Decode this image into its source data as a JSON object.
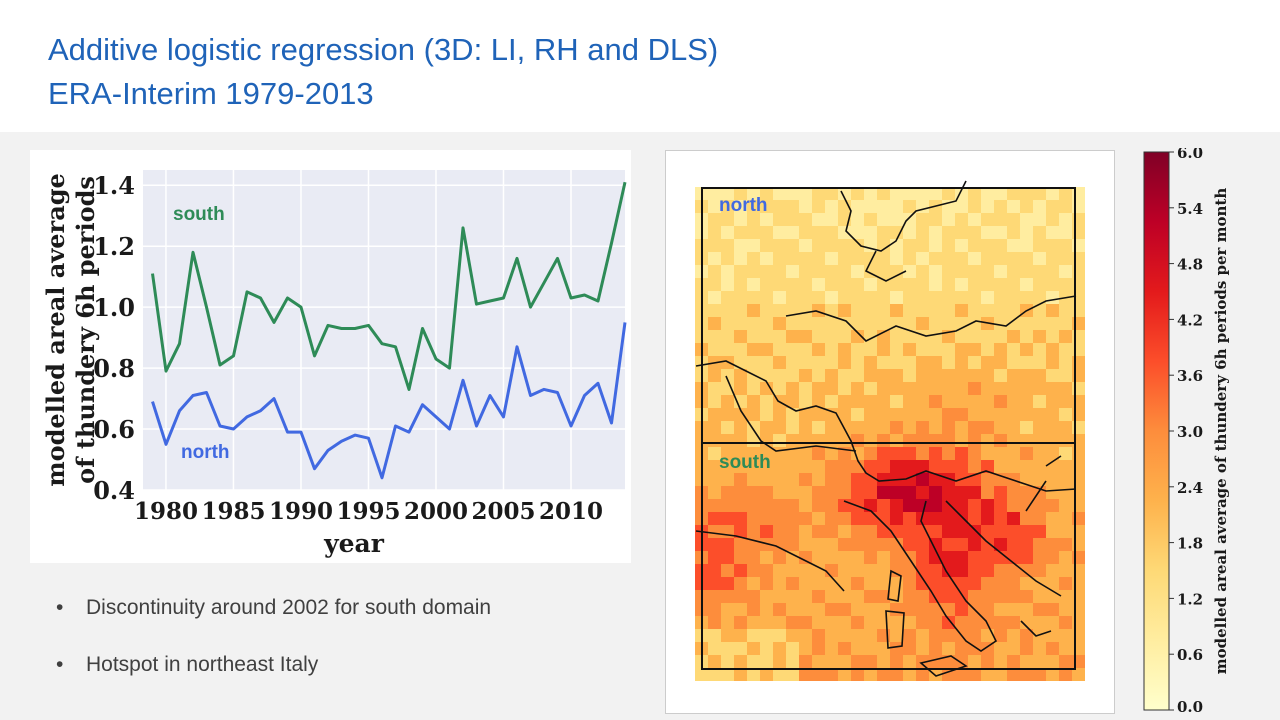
{
  "header": {
    "title_line1": "Additive logistic regression (3D: LI, RH and DLS)",
    "title_line2": "ERA-Interim 1979-2013"
  },
  "bullets": [
    "Discontinuity around 2002 for south domain",
    "Hotspot in northeast Italy"
  ],
  "chart_data": [
    {
      "type": "line",
      "xlabel": "year",
      "ylabel": "modelled areal average of thundery 6h periods",
      "x": [
        1979,
        1980,
        1981,
        1982,
        1983,
        1984,
        1985,
        1986,
        1987,
        1988,
        1989,
        1990,
        1991,
        1992,
        1993,
        1994,
        1995,
        1996,
        1997,
        1998,
        1999,
        2000,
        2001,
        2002,
        2003,
        2004,
        2005,
        2006,
        2007,
        2008,
        2009,
        2010,
        2011,
        2012,
        2013,
        2014
      ],
      "xlim": [
        1978.3,
        2014
      ],
      "ylim": [
        0.4,
        1.45
      ],
      "x_ticks": [
        1980,
        1985,
        1990,
        1995,
        2000,
        2005,
        2010
      ],
      "y_ticks": [
        0.4,
        0.6,
        0.8,
        1.0,
        1.2,
        1.4
      ],
      "y_tick_labels": [
        "0.4",
        "0.6",
        "0.8",
        "1.0",
        "1.2",
        "1.4"
      ],
      "grid": true,
      "series": [
        {
          "name": "south",
          "color": "#2e8b57",
          "values": [
            1.11,
            0.79,
            0.88,
            1.18,
            1.0,
            0.81,
            0.84,
            1.05,
            1.03,
            0.95,
            1.03,
            1.0,
            0.84,
            0.94,
            0.93,
            0.93,
            0.94,
            0.88,
            0.87,
            0.73,
            0.93,
            0.83,
            0.8,
            1.26,
            1.01,
            1.02,
            1.03,
            1.16,
            1.0,
            1.08,
            1.16,
            1.03,
            1.04,
            1.02,
            1.21,
            1.41
          ]
        },
        {
          "name": "north",
          "color": "#4169e1",
          "values": [
            0.69,
            0.55,
            0.66,
            0.71,
            0.72,
            0.61,
            0.6,
            0.64,
            0.66,
            0.7,
            0.59,
            0.59,
            0.47,
            0.53,
            0.56,
            0.58,
            0.57,
            0.44,
            0.61,
            0.59,
            0.68,
            0.64,
            0.6,
            0.76,
            0.61,
            0.71,
            0.64,
            0.87,
            0.71,
            0.73,
            0.72,
            0.61,
            0.71,
            0.75,
            0.62,
            0.95
          ]
        }
      ]
    },
    {
      "type": "heatmap",
      "domain_labels": [
        "north",
        "south"
      ],
      "colorbar": {
        "label": "modelled areal average of thundery 6h periods per month",
        "ticks": [
          0.0,
          0.6,
          1.2,
          1.8,
          2.4,
          3.0,
          3.6,
          4.2,
          4.8,
          5.4,
          6.0
        ],
        "tick_labels": [
          "0.0",
          "0.6",
          "1.2",
          "1.8",
          "2.4",
          "3.0",
          "3.6",
          "4.2",
          "4.8",
          "5.4",
          "6.0"
        ],
        "range": [
          0,
          6.0
        ]
      },
      "colors": [
        "#ffffcc",
        "#ffeda0",
        "#fed976",
        "#feb24c",
        "#fd8d3c",
        "#fc4e2a",
        "#e31a1c",
        "#bd0026",
        "#800026"
      ]
    }
  ]
}
